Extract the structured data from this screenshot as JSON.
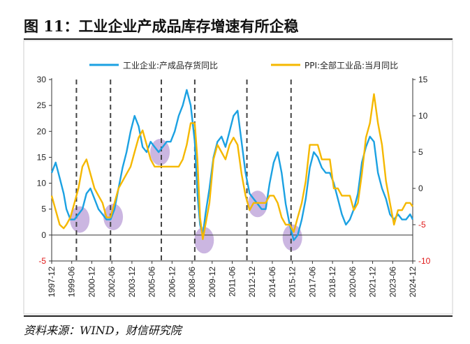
{
  "header": {
    "title": "图 11：工业企业产成品库存增速有所企稳"
  },
  "footer": {
    "source": "资料来源：WIND，财信研究院"
  },
  "colors": {
    "series1": "#1ba1e2",
    "series2": "#f5b800",
    "highlight": "#b79ad6",
    "divider": "#444444",
    "negative_tick": "#e01919"
  },
  "chart_data": {
    "type": "line",
    "legend": "top-center",
    "grid": false,
    "x_ticks": [
      "1997-12",
      "1999-06",
      "2000-12",
      "2002-06",
      "2003-12",
      "2005-06",
      "2006-12",
      "2008-06",
      "2009-12",
      "2011-06",
      "2012-12",
      "2014-06",
      "2015-12",
      "2017-06",
      "2018-12",
      "2020-06",
      "2021-12",
      "2023-06",
      "2024-12"
    ],
    "x_range": [
      1997.9,
      2024.9
    ],
    "y_left": {
      "range": [
        -5,
        30
      ],
      "ticks": [
        "-5",
        "0",
        "5",
        "10",
        "15",
        "20",
        "25",
        "30"
      ]
    },
    "y_right": {
      "range": [
        -10,
        15
      ],
      "ticks": [
        "-10",
        "-5",
        "0",
        "5",
        "10",
        "15"
      ]
    },
    "vertical_dividers": [
      1999.75,
      2002.3,
      2006.1,
      2008.6,
      2012.5,
      2015.8
    ],
    "highlight_regions": [
      {
        "x": 2000.0,
        "y_left": 3.0
      },
      {
        "x": 2002.5,
        "y_left": 3.5
      },
      {
        "x": 2006.0,
        "y_left": 16.0
      },
      {
        "x": 2009.3,
        "y_left": -1.0
      },
      {
        "x": 2013.3,
        "y_left": 6.0
      },
      {
        "x": 2015.9,
        "y_left": -0.5
      }
    ],
    "series": [
      {
        "name": "工业企业:产成品存货同比",
        "axis": "left",
        "x": [
          1997.9,
          1998.2,
          1998.5,
          1998.8,
          1999.0,
          1999.3,
          1999.6,
          1999.9,
          2000.2,
          2000.5,
          2000.8,
          2001.1,
          2001.4,
          2001.7,
          2002.0,
          2002.3,
          2002.6,
          2002.9,
          2003.2,
          2003.5,
          2003.8,
          2004.1,
          2004.4,
          2004.7,
          2005.0,
          2005.3,
          2005.6,
          2005.9,
          2006.2,
          2006.5,
          2006.8,
          2007.1,
          2007.4,
          2007.7,
          2008.0,
          2008.3,
          2008.6,
          2008.8,
          2009.0,
          2009.2,
          2009.4,
          2009.7,
          2010.0,
          2010.3,
          2010.6,
          2010.9,
          2011.2,
          2011.5,
          2011.8,
          2012.1,
          2012.4,
          2012.7,
          2013.0,
          2013.3,
          2013.6,
          2013.9,
          2014.2,
          2014.5,
          2014.8,
          2015.1,
          2015.4,
          2015.7,
          2016.0,
          2016.3,
          2016.6,
          2016.9,
          2017.2,
          2017.5,
          2017.8,
          2018.1,
          2018.4,
          2018.7,
          2019.0,
          2019.3,
          2019.6,
          2019.9,
          2020.2,
          2020.5,
          2020.8,
          2021.1,
          2021.4,
          2021.7,
          2022.0,
          2022.3,
          2022.6,
          2022.9,
          2023.2,
          2023.5,
          2023.8,
          2024.1,
          2024.4,
          2024.7,
          2024.9
        ],
        "values": [
          12,
          14,
          11,
          8,
          5,
          3,
          3,
          4,
          5,
          8,
          9,
          7,
          5,
          4,
          3,
          3,
          5,
          9,
          13,
          16,
          20,
          23,
          21,
          17,
          16,
          18,
          17,
          16,
          17,
          18,
          18,
          20,
          23,
          25,
          28,
          25,
          18,
          8,
          2,
          0,
          4,
          9,
          15,
          18,
          19,
          17,
          20,
          23,
          24,
          18,
          12,
          8,
          7,
          6,
          5,
          5,
          10,
          14,
          16,
          12,
          6,
          2,
          -1,
          0,
          3,
          7,
          13,
          16,
          15,
          13,
          12,
          12,
          10,
          7,
          4,
          2,
          3,
          5,
          8,
          14,
          17,
          19,
          18,
          12,
          9,
          7,
          4,
          3,
          4,
          3,
          3,
          4,
          3
        ]
      },
      {
        "name": "PPI:全部工业品:当月同比",
        "axis": "right",
        "x": [
          1997.9,
          1998.2,
          1998.5,
          1998.8,
          1999.0,
          1999.3,
          1999.6,
          1999.9,
          2000.2,
          2000.5,
          2000.8,
          2001.1,
          2001.4,
          2001.7,
          2002.0,
          2002.3,
          2002.6,
          2002.9,
          2003.2,
          2003.5,
          2003.8,
          2004.1,
          2004.4,
          2004.7,
          2005.0,
          2005.3,
          2005.6,
          2005.9,
          2006.2,
          2006.5,
          2006.8,
          2007.1,
          2007.4,
          2007.7,
          2008.0,
          2008.3,
          2008.6,
          2008.8,
          2009.0,
          2009.2,
          2009.4,
          2009.7,
          2010.0,
          2010.3,
          2010.6,
          2010.9,
          2011.2,
          2011.5,
          2011.8,
          2012.1,
          2012.4,
          2012.7,
          2013.0,
          2013.3,
          2013.6,
          2013.9,
          2014.2,
          2014.5,
          2014.8,
          2015.1,
          2015.4,
          2015.7,
          2016.0,
          2016.3,
          2016.6,
          2016.9,
          2017.2,
          2017.5,
          2017.8,
          2018.1,
          2018.4,
          2018.7,
          2019.0,
          2019.3,
          2019.6,
          2019.9,
          2020.2,
          2020.5,
          2020.8,
          2021.1,
          2021.4,
          2021.7,
          2022.0,
          2022.3,
          2022.6,
          2022.9,
          2023.2,
          2023.5,
          2023.8,
          2024.1,
          2024.4,
          2024.7,
          2024.9
        ],
        "values": [
          -1,
          -3,
          -5,
          -5.5,
          -5,
          -4,
          -2,
          0,
          3,
          4,
          2,
          0,
          -1,
          -2,
          -4,
          -4,
          -2,
          0,
          1,
          2,
          3,
          5,
          7,
          8,
          6,
          4,
          3,
          3,
          3,
          3,
          3,
          3,
          3,
          4,
          6,
          9,
          9,
          4,
          -4,
          -7,
          -5,
          -2,
          4,
          6,
          5,
          4,
          6,
          7,
          6,
          2,
          -1,
          -3,
          -2,
          -2,
          -2,
          -2,
          -1,
          -1,
          -2,
          -4,
          -5,
          -5,
          -6,
          -4,
          -2,
          1,
          6,
          6,
          6,
          4,
          4,
          4,
          0,
          0,
          -1,
          -1,
          -1,
          -3,
          -2,
          2,
          7,
          9,
          13,
          9,
          6,
          1,
          -2,
          -5,
          -3,
          -3,
          -2,
          -2,
          -2.5
        ]
      }
    ]
  }
}
